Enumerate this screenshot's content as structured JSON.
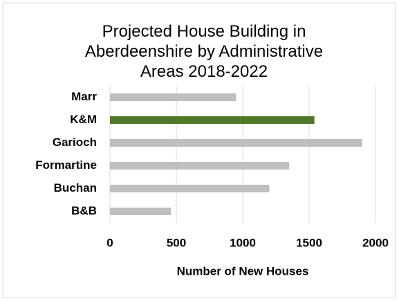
{
  "chart_data": {
    "type": "barh",
    "title": "Projected House Building in Aberdeenshire by Administrative Areas 2018-2022",
    "categories": [
      "Marr",
      "K&M",
      "Garioch",
      "Formartine",
      "Buchan",
      "B&B"
    ],
    "values": [
      950,
      1540,
      1900,
      1350,
      1200,
      460
    ],
    "colors": [
      "#bfbfbf",
      "#4e7a27",
      "#bfbfbf",
      "#bfbfbf",
      "#bfbfbf",
      "#bfbfbf"
    ],
    "xlabel": "Number of New Houses",
    "xlim": [
      0,
      2000
    ],
    "xticks": [
      0,
      500,
      1000,
      1500,
      2000
    ],
    "grid": true
  }
}
